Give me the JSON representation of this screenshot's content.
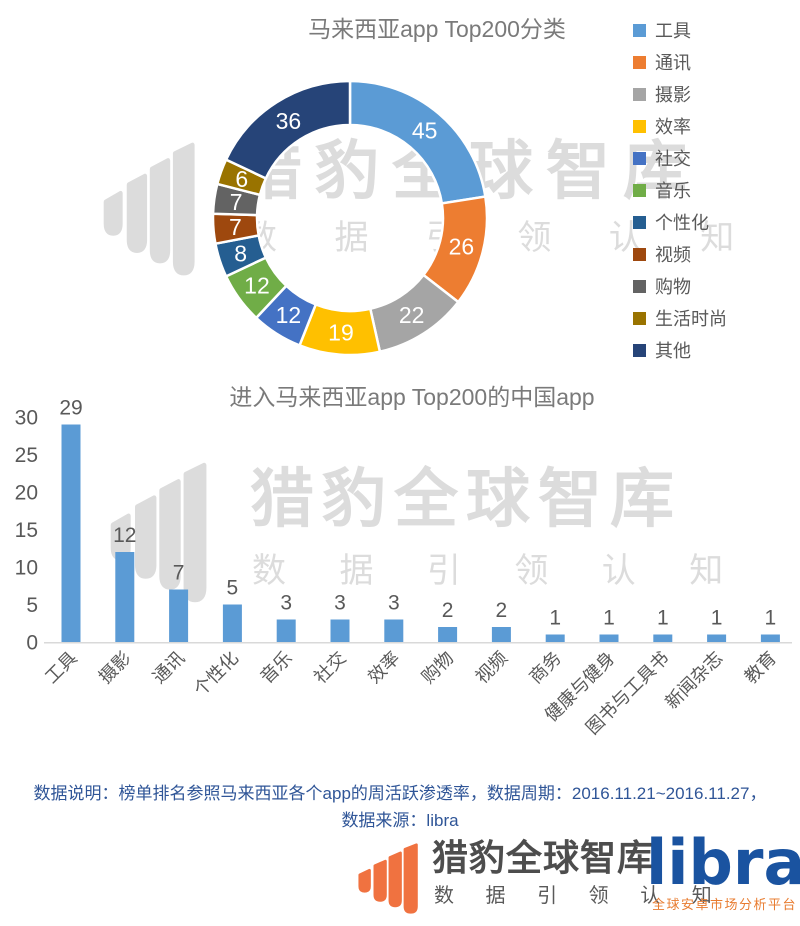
{
  "chart_data": [
    {
      "type": "pie",
      "donut": true,
      "title": "马来西亚app Top200分类",
      "labels": [
        "工具",
        "通讯",
        "摄影",
        "效率",
        "社交",
        "音乐",
        "个性化",
        "视频",
        "购物",
        "生活时尚",
        "其他"
      ],
      "values": [
        45,
        26,
        22,
        19,
        12,
        12,
        8,
        7,
        7,
        6,
        36
      ],
      "total": 200,
      "colors": [
        "#5B9BD5",
        "#ED7D31",
        "#A5A5A5",
        "#FFC000",
        "#4472C4",
        "#70AD47",
        "#255E91",
        "#9E480E",
        "#636363",
        "#997300",
        "#264478"
      ],
      "start_angle": 0,
      "direction": "clockwise",
      "legend_position": "right",
      "value_label_color": "#FFFFFF"
    },
    {
      "type": "bar",
      "title": "进入马来西亚app Top200的中国app",
      "categories": [
        "工具",
        "摄影",
        "通讯",
        "个性化",
        "音乐",
        "社交",
        "效率",
        "购物",
        "视频",
        "商务",
        "健康与健身",
        "图书与工具书",
        "新闻杂志",
        "教育"
      ],
      "values": [
        29,
        12,
        7,
        5,
        3,
        3,
        3,
        2,
        2,
        1,
        1,
        1,
        1,
        1
      ],
      "bar_color": "#5B9BD5",
      "ylim": [
        0,
        30
      ],
      "yticks": [
        0,
        5,
        10,
        15,
        20,
        25,
        30
      ],
      "grid": false,
      "xlabel": "",
      "ylabel": ""
    }
  ],
  "watermark": {
    "text": "猎豹全球智库",
    "subtext": "数 据 引 领 认 知"
  },
  "note": {
    "line1": "数据说明：榜单排名参照马来西亚各个app的周活跃渗透率，数据周期：2016.11.21~2016.11.27，",
    "line2": "数据来源：libra"
  },
  "footer": {
    "brand_name": "猎豹全球智库",
    "brand_tagline": "数 据 引 领 认 知",
    "libra_name": "libra",
    "libra_tagline": "全球安卓市场分析平台"
  },
  "colors": {
    "accent_blue": "#5B9BD5",
    "watermark_gray": "#DCDCDC",
    "brand_orange": "#F07240",
    "libra_blue": "#1A53A0",
    "libra_tagline_orange": "#E87C30",
    "note_blue": "#2F5597",
    "title_gray": "#7A7A7A",
    "text_gray": "#595959"
  }
}
